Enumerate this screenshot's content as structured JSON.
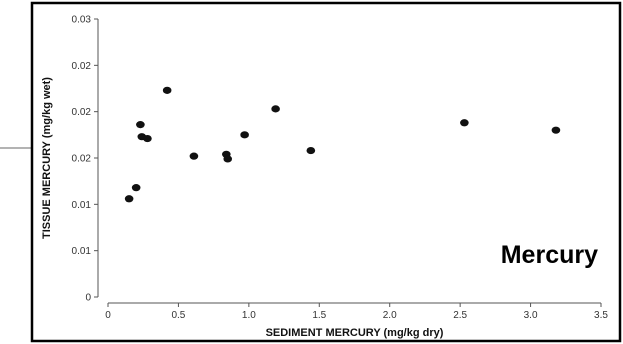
{
  "chart_data": {
    "type": "scatter",
    "title": "",
    "xlabel": "SEDIMENT MERCURY (mg/kg dry)",
    "ylabel": "TISSUE MERCURY (mg/kg wet)",
    "xlim": [
      0,
      3.5
    ],
    "ylim": [
      0,
      0.03
    ],
    "x_ticks": [
      0,
      0.5,
      1.0,
      1.5,
      2.0,
      2.5,
      3.0,
      3.5
    ],
    "x_tick_labels": [
      "0",
      "0.5",
      "1.0",
      "1.5",
      "2.0",
      "2.5",
      "3.0",
      "3.5"
    ],
    "y_ticks": [
      0,
      0.005,
      0.01,
      0.015,
      0.02,
      0.025,
      0.03
    ],
    "y_tick_labels": [
      "0",
      "0.01",
      "0.01",
      "0.02",
      "0.02",
      "0.02",
      "0.03"
    ],
    "grid": false,
    "annotation": "Mercury",
    "series": [
      {
        "marker_color": "#111111",
        "points": [
          {
            "x": 0.15,
            "y": 0.0106
          },
          {
            "x": 0.2,
            "y": 0.0118
          },
          {
            "x": 0.23,
            "y": 0.0186
          },
          {
            "x": 0.24,
            "y": 0.0173
          },
          {
            "x": 0.28,
            "y": 0.0171
          },
          {
            "x": 0.42,
            "y": 0.0223
          },
          {
            "x": 0.61,
            "y": 0.0152
          },
          {
            "x": 0.84,
            "y": 0.0154
          },
          {
            "x": 0.85,
            "y": 0.0149
          },
          {
            "x": 0.97,
            "y": 0.0175
          },
          {
            "x": 1.19,
            "y": 0.0203
          },
          {
            "x": 1.44,
            "y": 0.0158
          },
          {
            "x": 2.53,
            "y": 0.0188
          },
          {
            "x": 3.18,
            "y": 0.018
          }
        ]
      }
    ]
  }
}
